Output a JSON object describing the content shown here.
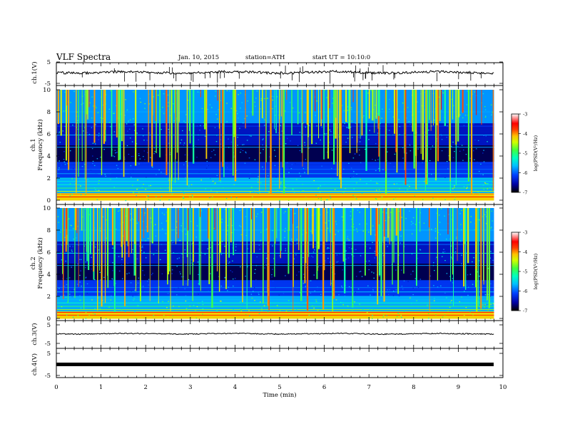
{
  "header": {
    "title": "VLF  Spectra",
    "date": "Jan. 10, 2015",
    "station": "station=ATH",
    "start": "start  UT  =    10:10:0"
  },
  "chart_data": [
    {
      "type": "line",
      "name": "ch1-waveform",
      "ylabel": "ch.1(V)",
      "ylim": [
        -5,
        5
      ],
      "yticks": [
        "5",
        "-5"
      ],
      "xlim": [
        0,
        10
      ],
      "baseline": 0.8,
      "note": "dense noisy voltage trace"
    },
    {
      "type": "heatmap",
      "name": "ch1-spectrogram",
      "ylabel_top": "ch.1",
      "ylabel": "Frequency  (kHz)",
      "ylim": [
        0,
        10
      ],
      "yticks": [
        "0",
        "2",
        "4",
        "6",
        "8",
        "10"
      ],
      "xlim": [
        0,
        9.8
      ],
      "colorbar": {
        "label": "log(PSD(V²/Hz)",
        "range": [
          -7,
          -3
        ],
        "ticks": [
          "-3",
          "-4",
          "-5",
          "-6",
          "-7"
        ]
      }
    },
    {
      "type": "heatmap",
      "name": "ch2-spectrogram",
      "ylabel_top": "ch.2",
      "ylabel": "Frequency  (kHz)",
      "ylim": [
        0,
        10
      ],
      "yticks": [
        "0",
        "2",
        "4",
        "6",
        "8",
        "10"
      ],
      "xlim": [
        0,
        9.8
      ],
      "colorbar": {
        "label": "log(PSD(V²/Hz)",
        "range": [
          -7,
          -3
        ],
        "ticks": [
          "-3",
          "-4",
          "-5",
          "-6",
          "-7"
        ]
      }
    },
    {
      "type": "line",
      "name": "ch3-waveform",
      "ylabel": "ch.3(V)",
      "ylim": [
        -5,
        5
      ],
      "yticks": [
        "5",
        "-5"
      ],
      "xlim": [
        0,
        10
      ],
      "baseline": -0.5
    },
    {
      "type": "line",
      "name": "ch4-waveform",
      "ylabel": "ch.4(V)",
      "ylim": [
        -5,
        5
      ],
      "yticks": [
        "5",
        "-5"
      ],
      "xlim": [
        0,
        10
      ],
      "baseline": 0.0
    }
  ],
  "xaxis": {
    "label": "Time  (min)",
    "ticks": [
      "0",
      "1",
      "2",
      "3",
      "4",
      "5",
      "6",
      "7",
      "8",
      "9",
      "10"
    ],
    "range": [
      0,
      10
    ]
  },
  "colors": {
    "axis": "#000000",
    "colormap": [
      "#000000",
      "#00007a",
      "#0000ff",
      "#00a0ff",
      "#00ffff",
      "#00ff80",
      "#60ff00",
      "#ffff00",
      "#ff8000",
      "#ff0000",
      "#ffffff"
    ]
  }
}
